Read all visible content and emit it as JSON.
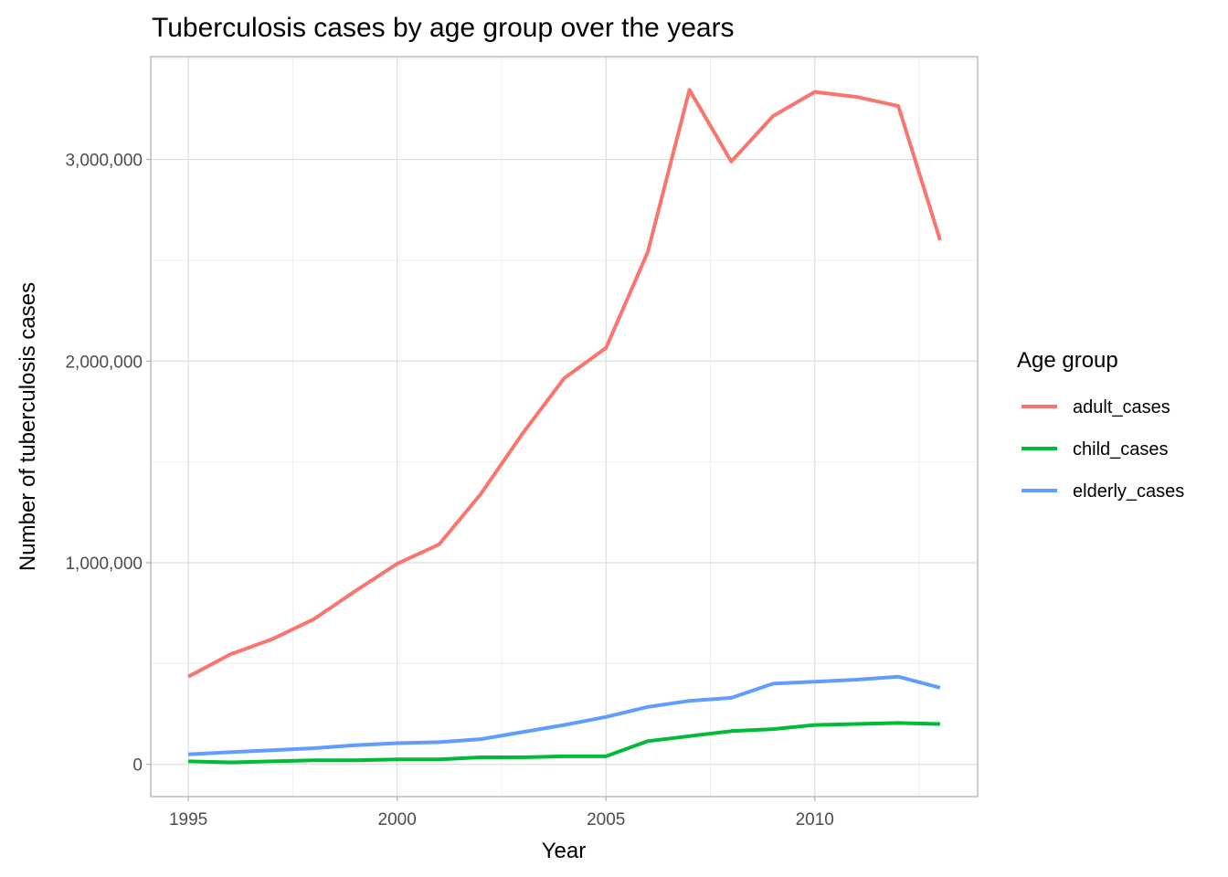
{
  "chart_data": {
    "type": "line",
    "title": "Tuberculosis cases by age group over the years",
    "xlabel": "Year",
    "ylabel": "Number of tuberculosis cases",
    "x": [
      1995,
      1996,
      1997,
      1998,
      1999,
      2000,
      2001,
      2002,
      2003,
      2004,
      2005,
      2006,
      2007,
      2008,
      2009,
      2010,
      2011,
      2012,
      2013
    ],
    "xticks": [
      1995,
      2000,
      2005,
      2010
    ],
    "xtick_labels": [
      "1995",
      "2000",
      "2005",
      "2010"
    ],
    "yticks": [
      0,
      1000000,
      2000000,
      3000000
    ],
    "ytick_labels": [
      "0",
      "1,000,000",
      "2,000,000",
      "3,000,000"
    ],
    "xlim": [
      1994.1,
      2013.9
    ],
    "ylim": [
      -160000,
      3510000
    ],
    "grid": true,
    "legend": {
      "title": "Age group",
      "position": "right"
    },
    "series": [
      {
        "name": "adult_cases",
        "color": "#F8766D",
        "values": [
          435000,
          545000,
          620000,
          720000,
          860000,
          995000,
          1090000,
          1340000,
          1640000,
          1915000,
          2065000,
          2540000,
          3345000,
          2990000,
          3215000,
          3335000,
          3310000,
          3265000,
          2600000
        ]
      },
      {
        "name": "child_cases",
        "color": "#00BA38",
        "values": [
          15000,
          10000,
          15000,
          20000,
          20000,
          25000,
          25000,
          35000,
          35000,
          40000,
          40000,
          115000,
          140000,
          165000,
          175000,
          195000,
          200000,
          205000,
          200000
        ]
      },
      {
        "name": "elderly_cases",
        "color": "#619CFF",
        "values": [
          50000,
          60000,
          70000,
          80000,
          95000,
          105000,
          110000,
          125000,
          160000,
          195000,
          235000,
          285000,
          315000,
          330000,
          400000,
          410000,
          420000,
          435000,
          380000
        ]
      }
    ]
  }
}
